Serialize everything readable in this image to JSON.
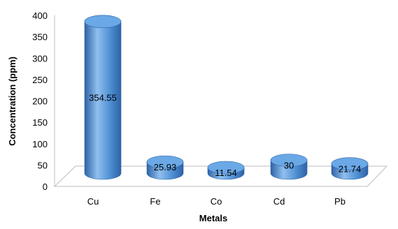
{
  "chart_data": {
    "type": "bar",
    "style": "3d-cylinder",
    "categories": [
      "Cu",
      "Fe",
      "Co",
      "Cd",
      "Pb"
    ],
    "values": [
      354.55,
      25.93,
      11.54,
      30,
      21.74
    ],
    "data_labels": [
      "354.55",
      "25.93",
      "11.54",
      "30",
      "21.74"
    ],
    "xlabel": "Metals",
    "ylabel": "Concentration (ppm)",
    "ylim": [
      0,
      400
    ],
    "yticks": [
      0,
      50,
      100,
      150,
      200,
      250,
      300,
      350,
      400
    ],
    "grid": false,
    "legend": "none"
  },
  "colors": {
    "bar_main": "#4f8fd3",
    "bar_light": "#8fc0ef",
    "bar_dark": "#2e62a6",
    "bar_top": "#6aa8e6",
    "axis": "#bdbdbd",
    "text": "#000000"
  }
}
